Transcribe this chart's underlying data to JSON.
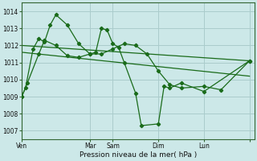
{
  "bg_color": "#cce8e8",
  "grid_color": "#aacccc",
  "line_color": "#1a6b1a",
  "xlabel": "Pression niveau de la mer( hPa )",
  "ylim": [
    1006.5,
    1014.5
  ],
  "yticks": [
    1007,
    1008,
    1009,
    1010,
    1011,
    1012,
    1013,
    1014
  ],
  "x_total": 168,
  "x_tick_positions": [
    0,
    72,
    96,
    144,
    192,
    240
  ],
  "x_tick_labels": [
    "Ven",
    "Mar",
    "Sam",
    "Dim",
    "Lun",
    ""
  ],
  "series1_x": [
    0,
    4,
    12,
    18,
    24,
    30,
    36,
    48,
    60,
    72,
    78,
    84,
    90,
    96,
    102,
    108,
    120,
    126,
    144,
    150,
    156,
    168,
    192,
    240
  ],
  "series1_y": [
    1009.0,
    1009.5,
    1011.8,
    1012.4,
    1012.2,
    1013.2,
    1013.8,
    1013.2,
    1012.1,
    1011.5,
    1011.6,
    1013.0,
    1012.9,
    1012.1,
    1011.9,
    1011.0,
    1009.2,
    1007.3,
    1007.4,
    1009.6,
    1009.5,
    1009.8,
    1009.3,
    1011.1
  ],
  "series2_x": [
    0,
    6,
    18,
    24,
    36,
    48,
    60,
    72,
    84,
    96,
    108,
    120,
    132,
    144,
    156,
    168,
    192,
    210,
    240
  ],
  "series2_y": [
    1009.0,
    1009.8,
    1011.5,
    1012.3,
    1012.0,
    1011.4,
    1011.3,
    1011.5,
    1011.5,
    1011.8,
    1012.1,
    1012.0,
    1011.5,
    1010.5,
    1009.7,
    1009.5,
    1009.6,
    1009.4,
    1011.1
  ],
  "trend1_x": [
    0,
    240
  ],
  "trend1_y": [
    1012.0,
    1011.1
  ],
  "trend2_x": [
    0,
    240
  ],
  "trend2_y": [
    1011.6,
    1010.2
  ]
}
